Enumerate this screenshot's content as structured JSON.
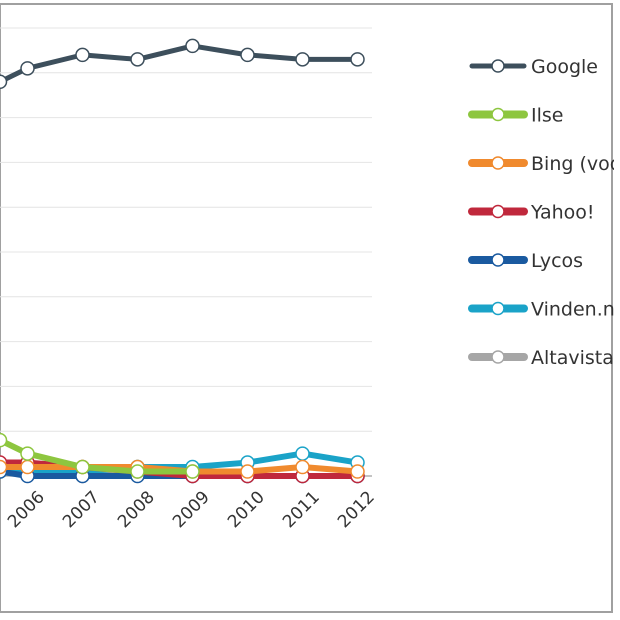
{
  "chart_data": {
    "type": "line",
    "title": "",
    "xlabel": "",
    "ylabel": "",
    "categories": [
      "2006",
      "2007",
      "2008",
      "2009",
      "2010",
      "2011",
      "2012"
    ],
    "x_domain_start": 2005.25,
    "ylim": [
      0,
      100
    ],
    "grid": true,
    "legend_position": "right",
    "series": [
      {
        "name": "Google",
        "color": "#3d4f5c",
        "x": [
          2005.25,
          2005.75,
          2006.75,
          2007.75,
          2008.75,
          2009.75,
          2010.75,
          2011.75
        ],
        "y": [
          88,
          91,
          94,
          93,
          96,
          94,
          93,
          93
        ]
      },
      {
        "name": "Ilse",
        "color": "#8dc63f",
        "x": [
          2005.25,
          2005.75,
          2006.75,
          2007.75,
          2008.75
        ],
        "y": [
          8,
          5,
          2,
          1,
          1
        ]
      },
      {
        "name": "Bing (voorheen MSN)",
        "color": "#f08a2e",
        "x": [
          2005.25,
          2005.75,
          2006.75,
          2007.75,
          2008.75,
          2009.75,
          2010.75,
          2011.75
        ],
        "y": [
          2,
          2,
          2,
          2,
          1,
          1,
          2,
          1
        ]
      },
      {
        "name": "Yahoo!",
        "color": "#c0283c",
        "x": [
          2005.25,
          2005.75,
          2006.75,
          2007.75,
          2008.75,
          2009.75,
          2010.75,
          2011.75
        ],
        "y": [
          3,
          3,
          2,
          1,
          0,
          0,
          0,
          0
        ]
      },
      {
        "name": "Lycos",
        "color": "#1a5aa0",
        "x": [
          2005.25,
          2005.75,
          2006.75,
          2007.75,
          2008.75,
          2009.75,
          2010.75,
          2011.75
        ],
        "y": [
          1,
          0,
          0,
          0,
          0,
          0,
          0,
          0
        ]
      },
      {
        "name": "Vinden.nl",
        "color": "#1aa3c8",
        "x": [
          2005.25,
          2005.75,
          2006.75,
          2007.75,
          2008.75,
          2009.75,
          2010.75,
          2011.75
        ],
        "y": [
          1,
          1,
          1,
          2,
          2,
          3,
          5,
          3
        ]
      },
      {
        "name": "Altavista",
        "color": "#a6a6a6",
        "x": [
          2005.25,
          2005.75,
          2006.75,
          2007.75,
          2008.75,
          2009.75,
          2010.75,
          2011.75
        ],
        "y": [
          1,
          1,
          0,
          2,
          0,
          0,
          0,
          0
        ]
      }
    ]
  }
}
